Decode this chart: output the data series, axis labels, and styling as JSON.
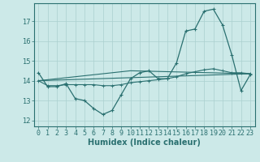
{
  "xlabel": "Humidex (Indice chaleur)",
  "xlim": [
    -0.5,
    23.5
  ],
  "ylim": [
    11.7,
    17.9
  ],
  "yticks": [
    12,
    13,
    14,
    15,
    16,
    17
  ],
  "xticks": [
    0,
    1,
    2,
    3,
    4,
    5,
    6,
    7,
    8,
    9,
    10,
    11,
    12,
    13,
    14,
    15,
    16,
    17,
    18,
    19,
    20,
    21,
    22,
    23
  ],
  "background_color": "#cce9e8",
  "grid_color": "#aad0cf",
  "line_color": "#2a7070",
  "line1_x": [
    0,
    1,
    2,
    3,
    4,
    5,
    6,
    7,
    8,
    9,
    10,
    11,
    12,
    13,
    14,
    15,
    16,
    17,
    18,
    19,
    20,
    21,
    22,
    23
  ],
  "line1_y": [
    14.4,
    13.7,
    13.7,
    13.85,
    13.1,
    13.0,
    12.6,
    12.3,
    12.5,
    13.3,
    14.1,
    14.4,
    14.5,
    14.1,
    14.1,
    14.9,
    16.5,
    16.6,
    17.5,
    17.6,
    16.8,
    15.3,
    13.5,
    14.3
  ],
  "line2_x": [
    0,
    1,
    2,
    3,
    4,
    5,
    6,
    7,
    8,
    9,
    10,
    11,
    12,
    13,
    14,
    15,
    16,
    17,
    18,
    19,
    20,
    21,
    22,
    23
  ],
  "line2_y": [
    14.0,
    13.75,
    13.75,
    13.8,
    13.8,
    13.8,
    13.8,
    13.75,
    13.75,
    13.8,
    13.9,
    13.95,
    14.0,
    14.05,
    14.1,
    14.2,
    14.35,
    14.45,
    14.55,
    14.6,
    14.5,
    14.4,
    14.4,
    14.35
  ],
  "line3_x": [
    0,
    23
  ],
  "line3_y": [
    14.0,
    14.35
  ],
  "line4_x": [
    0,
    10,
    23
  ],
  "line4_y": [
    14.0,
    14.5,
    14.35
  ]
}
